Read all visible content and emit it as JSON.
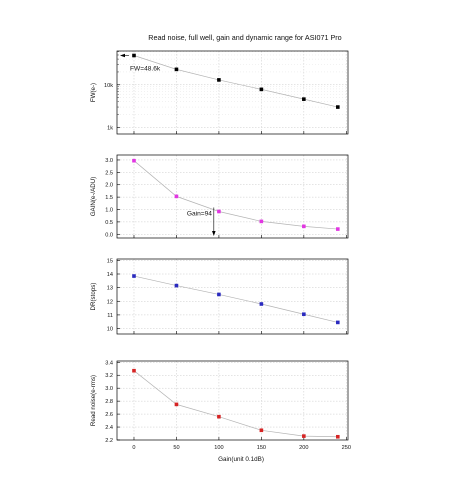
{
  "chart_data": {
    "type": "scatter",
    "title": "Read noise, full well, gain and dynamic range for ASI071 Pro",
    "xlabel": "Gain(unit 0.1dB)",
    "x_ticks": [
      0,
      50,
      100,
      150,
      200,
      250
    ],
    "xlim": [
      -20,
      252
    ],
    "grid": true,
    "panels": [
      {
        "ylabel": "FW(e-)",
        "scale": "log",
        "ylim": [
          700,
          62000
        ],
        "y_ticks": [
          1000,
          10000
        ],
        "y_tick_labels": [
          "1k",
          "10k"
        ],
        "color": "#000000",
        "series": {
          "x": [
            0,
            50,
            100,
            150,
            200,
            240
          ],
          "y": [
            48600,
            23000,
            13000,
            7800,
            4600,
            3000
          ]
        },
        "annotation": {
          "text": "FW=48.6k",
          "x": 0,
          "y": 48600
        }
      },
      {
        "ylabel": "GAIN(e-/ADU)",
        "scale": "linear",
        "ylim": [
          -0.15,
          3.2
        ],
        "y_ticks": [
          0.0,
          0.5,
          1.0,
          1.5,
          2.0,
          2.5,
          3.0
        ],
        "y_tick_labels": [
          "0.0",
          "0.5",
          "1.0",
          "1.5",
          "2.0",
          "2.5",
          "3.0"
        ],
        "color": "#e236e2",
        "series": {
          "x": [
            0,
            50,
            100,
            150,
            200,
            240
          ],
          "y": [
            2.97,
            1.53,
            0.92,
            0.52,
            0.32,
            0.21
          ]
        },
        "annotation": {
          "text": "Gain=94",
          "x": 94,
          "y": 1.0
        }
      },
      {
        "ylabel": "DR(stops)",
        "scale": "linear",
        "ylim": [
          9.6,
          15.1
        ],
        "y_ticks": [
          10,
          11,
          12,
          13,
          14,
          15
        ],
        "y_tick_labels": [
          "10",
          "11",
          "12",
          "13",
          "14",
          "15"
        ],
        "color": "#2a2abf",
        "series": {
          "x": [
            0,
            50,
            100,
            150,
            200,
            240
          ],
          "y": [
            13.85,
            13.15,
            12.5,
            11.8,
            11.05,
            10.45
          ]
        }
      },
      {
        "ylabel": "Read noise(e-rms)",
        "scale": "linear",
        "ylim": [
          2.2,
          3.42
        ],
        "y_ticks": [
          2.2,
          2.4,
          2.6,
          2.8,
          3.0,
          3.2,
          3.4
        ],
        "y_tick_labels": [
          "2.2",
          "2.4",
          "2.6",
          "2.8",
          "3.0",
          "3.2",
          "3.4"
        ],
        "color": "#d62424",
        "series": {
          "x": [
            0,
            50,
            100,
            150,
            200,
            240
          ],
          "y": [
            3.27,
            2.75,
            2.56,
            2.35,
            2.26,
            2.25
          ]
        }
      }
    ]
  }
}
